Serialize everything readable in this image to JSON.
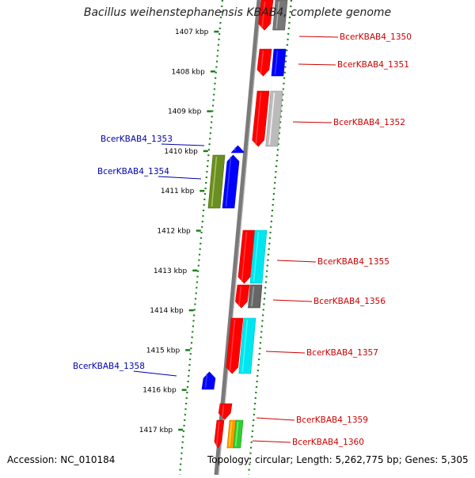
{
  "title": "Bacillus weihenstephanensis KBAB4, complete genome",
  "accession": "Accession: NC_010184",
  "topology": "Topology: circular; Length: 5,262,775 bp; Genes: 5,305",
  "colors": {
    "backbone": "#7a7a7a",
    "guide": "#1a7f1a",
    "forward_label": "#cc0000",
    "reverse_label": "#0000aa"
  },
  "ticks": [
    "1407 kbp",
    "1408 kbp",
    "1409 kbp",
    "1410 kbp",
    "1411 kbp",
    "1412 kbp",
    "1413 kbp",
    "1414 kbp",
    "1415 kbp",
    "1416 kbp",
    "1417 kbp"
  ],
  "genes": [
    {
      "label": "BcerKBAB4_1350",
      "strand": "forward",
      "colors": [
        "#ff0000",
        "#777777"
      ]
    },
    {
      "label": "BcerKBAB4_1351",
      "strand": "forward",
      "colors": [
        "#ff0000",
        "#0000ff"
      ]
    },
    {
      "label": "BcerKBAB4_1352",
      "strand": "forward",
      "colors": [
        "#ff0000",
        "#bbbbbb"
      ]
    },
    {
      "label": "BcerKBAB4_1353",
      "strand": "reverse",
      "colors": [
        "#0000ff"
      ]
    },
    {
      "label": "BcerKBAB4_1354",
      "strand": "reverse",
      "colors": [
        "#6b8e23",
        "#0000ff"
      ]
    },
    {
      "label": "BcerKBAB4_1355",
      "strand": "forward",
      "colors": [
        "#ff0000",
        "#00e5ee"
      ]
    },
    {
      "label": "BcerKBAB4_1356",
      "strand": "forward",
      "colors": [
        "#ff0000",
        "#666666"
      ]
    },
    {
      "label": "BcerKBAB4_1357",
      "strand": "forward",
      "colors": [
        "#ff0000",
        "#00e5ee"
      ]
    },
    {
      "label": "BcerKBAB4_1358",
      "strand": "reverse",
      "colors": [
        "#0000ff"
      ]
    },
    {
      "label": "BcerKBAB4_1359",
      "strand": "forward",
      "colors": [
        "#ff0000"
      ]
    },
    {
      "label": "BcerKBAB4_1360",
      "strand": "forward",
      "colors": [
        "#ff0000",
        "#ff9900",
        "#33cc33"
      ]
    }
  ]
}
